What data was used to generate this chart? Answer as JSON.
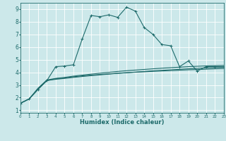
{
  "xlabel": "Humidex (Indice chaleur)",
  "xlim": [
    0,
    23
  ],
  "ylim": [
    0.8,
    9.5
  ],
  "xticks": [
    0,
    1,
    2,
    3,
    4,
    5,
    6,
    7,
    8,
    9,
    10,
    11,
    12,
    13,
    14,
    15,
    16,
    17,
    18,
    19,
    20,
    21,
    22,
    23
  ],
  "yticks": [
    1,
    2,
    3,
    4,
    5,
    6,
    7,
    8,
    9
  ],
  "background_color": "#cce8ea",
  "line_color": "#1e6b6b",
  "grid_color": "#ffffff",
  "line1_x": [
    0,
    1,
    2,
    3,
    4,
    5,
    6,
    7,
    8,
    9,
    10,
    11,
    12,
    13,
    14,
    15,
    16,
    17,
    18,
    19,
    20,
    21,
    22,
    23
  ],
  "line1_y": [
    1.55,
    1.9,
    2.65,
    3.35,
    4.45,
    4.5,
    4.6,
    6.65,
    8.5,
    8.4,
    8.55,
    8.35,
    9.15,
    8.85,
    7.55,
    7.0,
    6.2,
    6.1,
    4.45,
    4.9,
    4.1,
    4.45,
    4.45,
    4.45
  ],
  "line2_x": [
    0,
    1,
    2,
    3,
    4,
    5,
    6,
    7,
    8,
    9,
    10,
    11,
    12,
    13,
    14,
    15,
    16,
    17,
    18,
    19,
    20,
    21,
    22,
    23
  ],
  "line2_y": [
    1.55,
    1.9,
    2.65,
    3.35,
    3.5,
    3.55,
    3.65,
    3.72,
    3.78,
    3.83,
    3.88,
    3.93,
    3.97,
    4.01,
    4.04,
    4.08,
    4.11,
    4.14,
    4.17,
    4.2,
    4.22,
    4.25,
    4.28,
    4.3
  ],
  "line3_x": [
    0,
    1,
    2,
    3,
    4,
    5,
    6,
    7,
    8,
    9,
    10,
    11,
    12,
    13,
    14,
    15,
    16,
    17,
    18,
    19,
    20,
    21,
    22,
    23
  ],
  "line3_y": [
    1.55,
    1.9,
    2.7,
    3.35,
    3.45,
    3.52,
    3.6,
    3.67,
    3.74,
    3.8,
    3.86,
    3.92,
    3.97,
    4.02,
    4.07,
    4.12,
    4.16,
    4.2,
    4.24,
    4.28,
    4.31,
    4.35,
    4.38,
    4.4
  ],
  "line4_x": [
    0,
    1,
    2,
    3,
    4,
    5,
    6,
    7,
    8,
    9,
    10,
    11,
    12,
    13,
    14,
    15,
    16,
    17,
    18,
    19,
    20,
    21,
    22,
    23
  ],
  "line4_y": [
    1.55,
    1.9,
    2.75,
    3.4,
    3.52,
    3.6,
    3.7,
    3.78,
    3.86,
    3.93,
    4.0,
    4.07,
    4.13,
    4.18,
    4.23,
    4.28,
    4.33,
    4.37,
    4.41,
    4.45,
    4.48,
    4.51,
    4.53,
    4.55
  ]
}
